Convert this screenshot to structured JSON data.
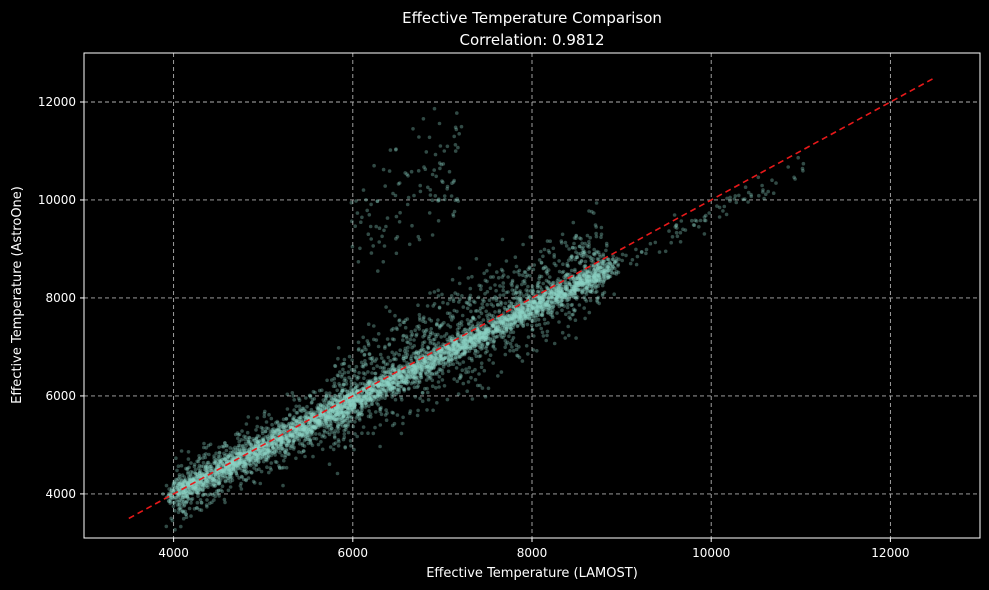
{
  "chart_data": {
    "type": "scatter",
    "title": "Effective Temperature Comparison",
    "subtitle": "Correlation: 0.9812",
    "xlabel": "Effective Temperature (LAMOST)",
    "ylabel": "Effective Temperature (AstroOne)",
    "xlim": [
      3000,
      13000
    ],
    "ylim": [
      3100,
      13000
    ],
    "xticks": [
      4000,
      6000,
      8000,
      10000,
      12000
    ],
    "yticks": [
      4000,
      6000,
      8000,
      10000,
      12000
    ],
    "xtick_labels": [
      "4000",
      "6000",
      "8000",
      "10000",
      "12000"
    ],
    "ytick_labels": [
      "4000",
      "6000",
      "8000",
      "10000",
      "12000"
    ],
    "grid": true,
    "series": [
      {
        "name": "stars",
        "kind": "scatter",
        "color": "#8dd3c7",
        "description_points_sampled": true,
        "clusters": [
          {
            "x_from": 4000,
            "x_to": 8900,
            "slope": 0.95,
            "intercept": 200,
            "spread": 180,
            "n": 3200
          },
          {
            "x_from": 4000,
            "x_to": 6000,
            "slope": 0.95,
            "intercept": 200,
            "spread": 450,
            "n": 900
          },
          {
            "x_from": 5800,
            "x_to": 8800,
            "slope": 1.0,
            "intercept": 0,
            "spread": 750,
            "n": 1400
          },
          {
            "x_from": 6000,
            "x_to": 7200,
            "slope": 1.0,
            "intercept": 3500,
            "spread": 900,
            "n": 120
          },
          {
            "x_from": 8800,
            "x_to": 11000,
            "slope": 0.95,
            "intercept": 200,
            "spread": 200,
            "n": 90
          }
        ]
      },
      {
        "name": "1:1 line",
        "kind": "line",
        "color": "#e8191a",
        "style": "dashed",
        "x": [
          3500,
          12500
        ],
        "y": [
          3500,
          12500
        ]
      }
    ]
  }
}
